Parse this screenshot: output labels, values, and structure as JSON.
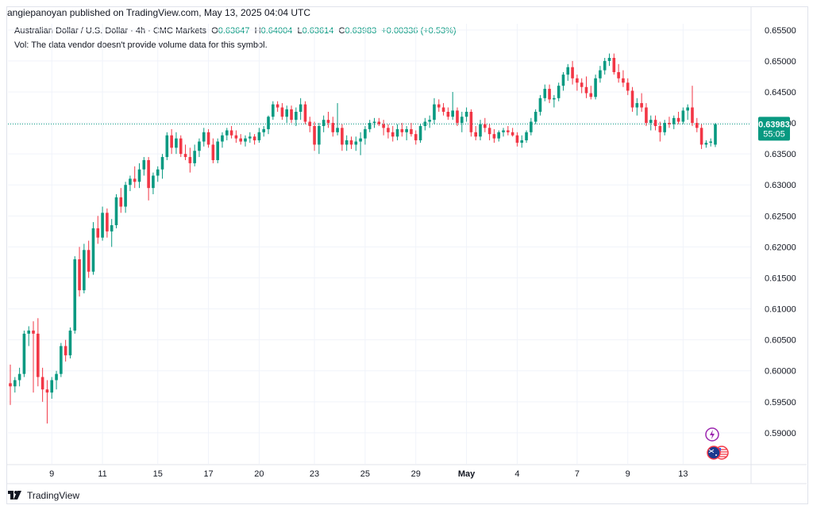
{
  "header": {
    "published": "angiepanoyan published on TradingView.com, May 13, 2025 04:04 UTC"
  },
  "legend": {
    "symbol": "Australian Dollar / U.S. Dollar · 4h · CMC Markets",
    "o_label": "O",
    "o_value": "0.63647",
    "h_label": "H",
    "h_value": "0.64004",
    "l_label": "L",
    "l_value": "0.63614",
    "c_label": "C",
    "c_value": "0.63983",
    "change": "+0.00336 (+0.53%)",
    "vol_note": "Vol: The data vendor doesn't provide volume data for this symbol."
  },
  "footer": {
    "brand": "TradingView"
  },
  "colors": {
    "up": "#089981",
    "down": "#f23645",
    "grid": "#f0f3fa",
    "text": "#131722",
    "price_line": "#089981"
  },
  "icons": {
    "events": "lightning-icon",
    "flags": "au-us-flag-icon",
    "logo": "tradingview-logo-icon"
  },
  "chart_data": {
    "type": "candlestick",
    "title": "Australian Dollar / U.S. Dollar · 4h · CMC Markets",
    "ylim": [
      0.585,
      0.656
    ],
    "y_ticks": [
      "0.65500",
      "0.65000",
      "0.64500",
      "0.64000",
      "0.63500",
      "0.63000",
      "0.62500",
      "0.62000",
      "0.61500",
      "0.61000",
      "0.60500",
      "0.60000",
      "0.59500",
      "0.59000"
    ],
    "y_tick_values": [
      0.655,
      0.65,
      0.645,
      0.64,
      0.635,
      0.63,
      0.625,
      0.62,
      0.615,
      0.61,
      0.605,
      0.6,
      0.595,
      0.59
    ],
    "x_labels": [
      "9",
      "11",
      "15",
      "17",
      "20",
      "23",
      "25",
      "29",
      "May",
      "4",
      "7",
      "9",
      "13"
    ],
    "x_label_index": [
      9,
      20,
      32,
      43,
      54,
      66,
      77,
      88,
      99,
      110,
      123,
      134,
      146
    ],
    "last_price": "0.63983",
    "last_price_value": 0.63983,
    "countdown": "55:05",
    "candles": [
      [
        0.598,
        0.601,
        0.5945,
        0.5975
      ],
      [
        0.5975,
        0.599,
        0.5965,
        0.5985
      ],
      [
        0.5985,
        0.6005,
        0.5975,
        0.5995
      ],
      [
        0.5995,
        0.6065,
        0.599,
        0.606
      ],
      [
        0.606,
        0.6072,
        0.604,
        0.6065
      ],
      [
        0.6065,
        0.608,
        0.5965,
        0.606
      ],
      [
        0.606,
        0.6085,
        0.5975,
        0.599
      ],
      [
        0.599,
        0.6005,
        0.595,
        0.597
      ],
      [
        0.597,
        0.5985,
        0.5915,
        0.5965
      ],
      [
        0.5965,
        0.599,
        0.5955,
        0.5985
      ],
      [
        0.5985,
        0.6,
        0.597,
        0.5995
      ],
      [
        0.5995,
        0.6045,
        0.599,
        0.604
      ],
      [
        0.604,
        0.605,
        0.6015,
        0.6025
      ],
      [
        0.6025,
        0.607,
        0.602,
        0.6065
      ],
      [
        0.6065,
        0.6185,
        0.606,
        0.618
      ],
      [
        0.618,
        0.62,
        0.612,
        0.613
      ],
      [
        0.613,
        0.6205,
        0.6125,
        0.6195
      ],
      [
        0.6195,
        0.621,
        0.615,
        0.616
      ],
      [
        0.616,
        0.624,
        0.6155,
        0.623
      ],
      [
        0.623,
        0.625,
        0.6205,
        0.6215
      ],
      [
        0.6215,
        0.6265,
        0.621,
        0.6255
      ],
      [
        0.6255,
        0.6262,
        0.6215,
        0.6225
      ],
      [
        0.6225,
        0.6245,
        0.62,
        0.6235
      ],
      [
        0.6235,
        0.6285,
        0.623,
        0.628
      ],
      [
        0.628,
        0.6295,
        0.6255,
        0.6265
      ],
      [
        0.6265,
        0.6305,
        0.6255,
        0.63
      ],
      [
        0.63,
        0.6315,
        0.629,
        0.631
      ],
      [
        0.631,
        0.633,
        0.6295,
        0.6305
      ],
      [
        0.6305,
        0.6335,
        0.6295,
        0.6325
      ],
      [
        0.6325,
        0.6345,
        0.6315,
        0.634
      ],
      [
        0.634,
        0.6345,
        0.6275,
        0.6295
      ],
      [
        0.6295,
        0.632,
        0.6285,
        0.6315
      ],
      [
        0.6315,
        0.633,
        0.6305,
        0.6325
      ],
      [
        0.6325,
        0.635,
        0.631,
        0.6345
      ],
      [
        0.6345,
        0.6385,
        0.634,
        0.638
      ],
      [
        0.638,
        0.639,
        0.635,
        0.636
      ],
      [
        0.636,
        0.6385,
        0.635,
        0.6375
      ],
      [
        0.6375,
        0.638,
        0.6345,
        0.635
      ],
      [
        0.635,
        0.6365,
        0.634,
        0.6345
      ],
      [
        0.6345,
        0.636,
        0.632,
        0.6335
      ],
      [
        0.6335,
        0.6365,
        0.633,
        0.6355
      ],
      [
        0.6355,
        0.6375,
        0.6345,
        0.637
      ],
      [
        0.637,
        0.6392,
        0.6362,
        0.6385
      ],
      [
        0.6385,
        0.639,
        0.636,
        0.6365
      ],
      [
        0.6365,
        0.6375,
        0.6335,
        0.634
      ],
      [
        0.634,
        0.6375,
        0.6335,
        0.637
      ],
      [
        0.637,
        0.6385,
        0.636,
        0.638
      ],
      [
        0.638,
        0.6392,
        0.6372,
        0.6388
      ],
      [
        0.6388,
        0.6395,
        0.6375,
        0.638
      ],
      [
        0.638,
        0.6388,
        0.6368,
        0.6375
      ],
      [
        0.6375,
        0.6382,
        0.6365,
        0.637
      ],
      [
        0.637,
        0.638,
        0.6362,
        0.6375
      ],
      [
        0.6375,
        0.6385,
        0.6368,
        0.6378
      ],
      [
        0.6378,
        0.6382,
        0.6365,
        0.6372
      ],
      [
        0.6372,
        0.6392,
        0.6368,
        0.6385
      ],
      [
        0.6385,
        0.6395,
        0.6378,
        0.639
      ],
      [
        0.639,
        0.6412,
        0.6382,
        0.641
      ],
      [
        0.641,
        0.6435,
        0.6405,
        0.643
      ],
      [
        0.643,
        0.6435,
        0.6418,
        0.6425
      ],
      [
        0.6425,
        0.6432,
        0.6405,
        0.641
      ],
      [
        0.641,
        0.6428,
        0.64,
        0.6422
      ],
      [
        0.6422,
        0.6428,
        0.64,
        0.6405
      ],
      [
        0.6405,
        0.6425,
        0.6395,
        0.6418
      ],
      [
        0.6418,
        0.644,
        0.6405,
        0.643
      ],
      [
        0.643,
        0.6435,
        0.6398,
        0.6402
      ],
      [
        0.6402,
        0.641,
        0.6385,
        0.6395
      ],
      [
        0.6395,
        0.6402,
        0.6355,
        0.6365
      ],
      [
        0.6365,
        0.64,
        0.635,
        0.6395
      ],
      [
        0.6395,
        0.6412,
        0.6385,
        0.6405
      ],
      [
        0.6405,
        0.6418,
        0.6392,
        0.64
      ],
      [
        0.64,
        0.641,
        0.6378,
        0.6385
      ],
      [
        0.6385,
        0.6432,
        0.638,
        0.6392
      ],
      [
        0.6392,
        0.6398,
        0.6355,
        0.6365
      ],
      [
        0.6365,
        0.638,
        0.6355,
        0.6372
      ],
      [
        0.6372,
        0.6378,
        0.6358,
        0.6365
      ],
      [
        0.6365,
        0.6378,
        0.6355,
        0.637
      ],
      [
        0.637,
        0.6385,
        0.6348,
        0.6375
      ],
      [
        0.6375,
        0.6395,
        0.6365,
        0.639
      ],
      [
        0.639,
        0.6405,
        0.6385,
        0.64
      ],
      [
        0.64,
        0.6408,
        0.6392,
        0.6402
      ],
      [
        0.6402,
        0.6408,
        0.6395,
        0.6398
      ],
      [
        0.6398,
        0.6405,
        0.638,
        0.6392
      ],
      [
        0.6392,
        0.6398,
        0.6375,
        0.6385
      ],
      [
        0.6385,
        0.6395,
        0.637,
        0.6378
      ],
      [
        0.6378,
        0.6398,
        0.6372,
        0.639
      ],
      [
        0.639,
        0.64,
        0.6378,
        0.6385
      ],
      [
        0.6385,
        0.6395,
        0.6372,
        0.639
      ],
      [
        0.639,
        0.64,
        0.6378,
        0.6382
      ],
      [
        0.6382,
        0.6388,
        0.6365,
        0.6372
      ],
      [
        0.6372,
        0.6398,
        0.6368,
        0.6395
      ],
      [
        0.6395,
        0.6408,
        0.6388,
        0.6402
      ],
      [
        0.6402,
        0.6412,
        0.6392,
        0.6405
      ],
      [
        0.6405,
        0.644,
        0.6398,
        0.643
      ],
      [
        0.643,
        0.6438,
        0.6418,
        0.6425
      ],
      [
        0.6425,
        0.6432,
        0.6412,
        0.6418
      ],
      [
        0.6418,
        0.6425,
        0.6405,
        0.641
      ],
      [
        0.641,
        0.645,
        0.6405,
        0.642
      ],
      [
        0.642,
        0.6425,
        0.6395,
        0.64
      ],
      [
        0.64,
        0.6418,
        0.6385,
        0.641
      ],
      [
        0.641,
        0.6425,
        0.6402,
        0.6418
      ],
      [
        0.6418,
        0.6422,
        0.6378,
        0.6385
      ],
      [
        0.6385,
        0.6395,
        0.6372,
        0.6378
      ],
      [
        0.6378,
        0.6405,
        0.6372,
        0.6398
      ],
      [
        0.6398,
        0.6408,
        0.6385,
        0.6392
      ],
      [
        0.6392,
        0.6398,
        0.6372,
        0.6382
      ],
      [
        0.6382,
        0.639,
        0.6368,
        0.6375
      ],
      [
        0.6375,
        0.6388,
        0.637,
        0.6385
      ],
      [
        0.6385,
        0.6392,
        0.6378,
        0.6388
      ],
      [
        0.6388,
        0.6395,
        0.638,
        0.6385
      ],
      [
        0.6385,
        0.6392,
        0.6378,
        0.638
      ],
      [
        0.638,
        0.6385,
        0.6362,
        0.6368
      ],
      [
        0.6368,
        0.638,
        0.636,
        0.6372
      ],
      [
        0.6372,
        0.6388,
        0.6368,
        0.6385
      ],
      [
        0.6385,
        0.6408,
        0.638,
        0.6402
      ],
      [
        0.6402,
        0.6422,
        0.6398,
        0.6418
      ],
      [
        0.6418,
        0.6445,
        0.6412,
        0.644
      ],
      [
        0.644,
        0.6462,
        0.6435,
        0.6455
      ],
      [
        0.6455,
        0.6462,
        0.6432,
        0.6438
      ],
      [
        0.6438,
        0.6445,
        0.6425,
        0.644
      ],
      [
        0.644,
        0.6465,
        0.6435,
        0.646
      ],
      [
        0.646,
        0.6482,
        0.6452,
        0.6478
      ],
      [
        0.6478,
        0.6495,
        0.6468,
        0.649
      ],
      [
        0.649,
        0.65,
        0.6462,
        0.6472
      ],
      [
        0.6472,
        0.6478,
        0.6452,
        0.6465
      ],
      [
        0.6465,
        0.6472,
        0.6448,
        0.6458
      ],
      [
        0.6458,
        0.6475,
        0.644,
        0.6448
      ],
      [
        0.6448,
        0.646,
        0.6438,
        0.6442
      ],
      [
        0.6442,
        0.6478,
        0.6438,
        0.6472
      ],
      [
        0.6472,
        0.6492,
        0.6465,
        0.6485
      ],
      [
        0.6485,
        0.6505,
        0.6478,
        0.65
      ],
      [
        0.65,
        0.6512,
        0.6492,
        0.6505
      ],
      [
        0.6505,
        0.6512,
        0.6478,
        0.6482
      ],
      [
        0.6482,
        0.6495,
        0.6465,
        0.6472
      ],
      [
        0.6472,
        0.6485,
        0.6458,
        0.6465
      ],
      [
        0.6465,
        0.6472,
        0.6445,
        0.6452
      ],
      [
        0.6452,
        0.6458,
        0.6418,
        0.6425
      ],
      [
        0.6425,
        0.644,
        0.6412,
        0.6432
      ],
      [
        0.6432,
        0.6448,
        0.6418,
        0.6425
      ],
      [
        0.6425,
        0.6432,
        0.6395,
        0.64
      ],
      [
        0.64,
        0.6412,
        0.6388,
        0.6405
      ],
      [
        0.6405,
        0.6412,
        0.6388,
        0.6395
      ],
      [
        0.6395,
        0.6402,
        0.637,
        0.6385
      ],
      [
        0.6385,
        0.6405,
        0.638,
        0.64
      ],
      [
        0.64,
        0.641,
        0.6392,
        0.6398
      ],
      [
        0.6398,
        0.6412,
        0.639,
        0.6408
      ],
      [
        0.6408,
        0.6418,
        0.6398,
        0.6402
      ],
      [
        0.6402,
        0.6425,
        0.6398,
        0.642
      ],
      [
        0.642,
        0.643,
        0.6405,
        0.6425
      ],
      [
        0.6425,
        0.646,
        0.6395,
        0.64
      ],
      [
        0.64,
        0.6408,
        0.6385,
        0.6392
      ],
      [
        0.6392,
        0.6398,
        0.6358,
        0.6365
      ],
      [
        0.6365,
        0.6372,
        0.636,
        0.6368
      ],
      [
        0.6368,
        0.6375,
        0.6362,
        0.637
      ],
      [
        0.6365,
        0.64,
        0.6361,
        0.6398
      ]
    ]
  }
}
